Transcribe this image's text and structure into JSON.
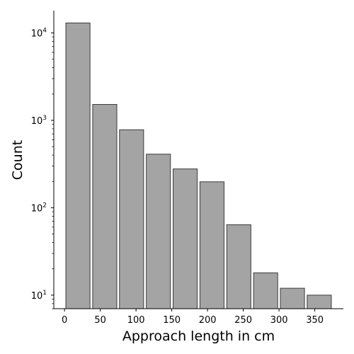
{
  "chart_data": {
    "type": "bar",
    "title": "",
    "xlabel": "Approach length in cm",
    "ylabel": "Count",
    "yscale": "log",
    "ylim": [
      7,
      18000
    ],
    "xlim": [
      -15,
      390
    ],
    "bins": [
      {
        "start": 0,
        "end": 37.5,
        "value": 13000
      },
      {
        "start": 37.5,
        "end": 75,
        "value": 1520
      },
      {
        "start": 75,
        "end": 112.5,
        "value": 780
      },
      {
        "start": 112.5,
        "end": 150,
        "value": 410
      },
      {
        "start": 150,
        "end": 187.5,
        "value": 278
      },
      {
        "start": 187.5,
        "end": 225,
        "value": 198
      },
      {
        "start": 225,
        "end": 262.5,
        "value": 64
      },
      {
        "start": 262.5,
        "end": 300,
        "value": 18
      },
      {
        "start": 300,
        "end": 337.5,
        "value": 12
      },
      {
        "start": 337.5,
        "end": 375,
        "value": 10
      }
    ],
    "xticks": [
      0,
      50,
      100,
      150,
      200,
      250,
      300,
      350
    ],
    "yticks": [
      {
        "value": 10,
        "base": "10",
        "exp": "1"
      },
      {
        "value": 100,
        "base": "10",
        "exp": "2"
      },
      {
        "value": 1000,
        "base": "10",
        "exp": "3"
      },
      {
        "value": 10000,
        "base": "10",
        "exp": "4"
      }
    ],
    "grid": false,
    "legend": "none",
    "colors": {
      "bar_fill": "#a4a4a4",
      "bar_edge": "#3a3a3a",
      "axis": "#000000"
    }
  }
}
